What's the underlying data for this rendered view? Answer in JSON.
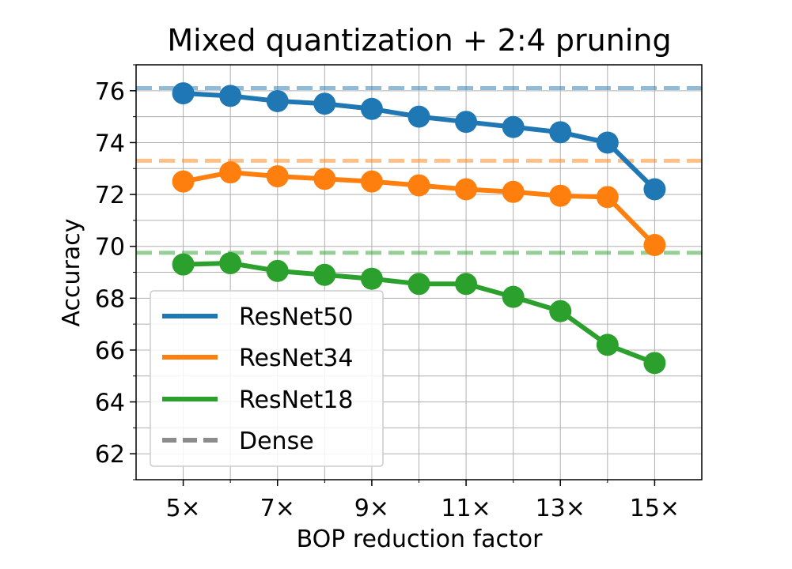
{
  "chart_data": {
    "type": "line",
    "title": "Mixed quantization + 2:4 pruning",
    "xlabel": "BOP reduction factor",
    "ylabel": "Accuracy",
    "x": [
      5,
      6,
      7,
      8,
      9,
      10,
      11,
      12,
      13,
      14,
      15
    ],
    "xlim": [
      4,
      16
    ],
    "ylim": [
      61,
      77
    ],
    "xticks": [
      5,
      7,
      9,
      11,
      13,
      15
    ],
    "xtick_labels": [
      "5×",
      "7×",
      "9×",
      "11×",
      "13×",
      "15×"
    ],
    "yticks": [
      62,
      64,
      66,
      68,
      70,
      72,
      74,
      76
    ],
    "grid": true,
    "legend_position": "lower-left",
    "series": [
      {
        "name": "ResNet50",
        "color": "#1f77b4",
        "values": [
          75.9,
          75.8,
          75.6,
          75.5,
          75.3,
          75.0,
          74.8,
          74.6,
          74.4,
          74.0,
          72.2
        ],
        "dense": 76.1
      },
      {
        "name": "ResNet34",
        "color": "#ff7f0e",
        "values": [
          72.5,
          72.85,
          72.7,
          72.6,
          72.5,
          72.35,
          72.2,
          72.1,
          71.95,
          71.9,
          70.05
        ],
        "dense": 73.3
      },
      {
        "name": "ResNet18",
        "color": "#2ca02c",
        "values": [
          69.3,
          69.35,
          69.05,
          68.9,
          68.75,
          68.55,
          68.55,
          68.05,
          67.5,
          66.2,
          65.5
        ],
        "dense": 69.75
      }
    ],
    "legend": [
      {
        "label": "ResNet50",
        "color": "#1f77b4",
        "style": "solid"
      },
      {
        "label": "ResNet34",
        "color": "#ff7f0e",
        "style": "solid"
      },
      {
        "label": "ResNet18",
        "color": "#2ca02c",
        "style": "solid"
      },
      {
        "label": "Dense",
        "color": "#7f7f7f",
        "style": "dashed"
      }
    ]
  }
}
